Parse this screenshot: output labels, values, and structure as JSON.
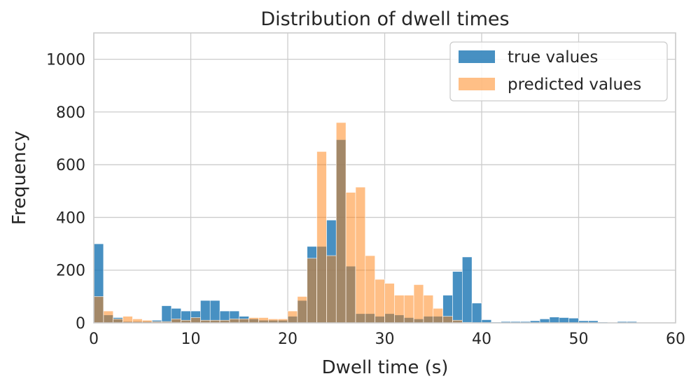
{
  "chart_data": {
    "type": "histogram",
    "title": "Distribution of dwell times",
    "xlabel": "Dwell time (s)",
    "ylabel": "Frequency",
    "xlim": [
      0,
      60
    ],
    "ylim": [
      0,
      1100
    ],
    "xticks": [
      0,
      10,
      20,
      30,
      40,
      50,
      60
    ],
    "yticks": [
      0,
      200,
      400,
      600,
      800,
      1000
    ],
    "grid": true,
    "legend_position": "top-right",
    "bin_width": 1,
    "bin_starts": [
      0,
      1,
      2,
      3,
      4,
      5,
      6,
      7,
      8,
      9,
      10,
      11,
      12,
      13,
      14,
      15,
      16,
      17,
      18,
      19,
      20,
      21,
      22,
      23,
      24,
      25,
      26,
      27,
      28,
      29,
      30,
      31,
      32,
      33,
      34,
      35,
      36,
      37,
      38,
      39,
      40,
      41,
      42,
      43,
      44,
      45,
      46,
      47,
      48,
      49,
      50,
      51,
      52,
      53,
      54,
      55,
      56,
      57,
      58,
      59
    ],
    "series": [
      {
        "name": "true values",
        "color": "#1f77b4",
        "values": [
          300,
          30,
          20,
          5,
          5,
          5,
          10,
          65,
          55,
          45,
          45,
          85,
          85,
          45,
          45,
          25,
          15,
          10,
          10,
          10,
          25,
          85,
          290,
          290,
          390,
          695,
          215,
          35,
          35,
          25,
          35,
          30,
          20,
          15,
          25,
          25,
          105,
          195,
          250,
          75,
          12,
          3,
          5,
          5,
          5,
          8,
          15,
          22,
          20,
          18,
          8,
          8,
          3,
          2,
          5,
          5,
          2,
          2,
          2,
          2
        ]
      },
      {
        "name": "predicted values",
        "color": "#ff7f0e",
        "values": [
          100,
          45,
          15,
          25,
          15,
          10,
          5,
          5,
          15,
          10,
          20,
          10,
          10,
          10,
          15,
          15,
          20,
          20,
          15,
          15,
          45,
          100,
          245,
          650,
          255,
          760,
          495,
          515,
          255,
          165,
          150,
          105,
          105,
          145,
          105,
          55,
          25,
          10,
          2,
          1,
          1,
          0,
          0,
          0,
          0,
          0,
          0,
          0,
          0,
          0,
          0,
          0,
          0,
          0,
          0,
          0,
          0,
          0,
          0,
          0
        ]
      }
    ]
  }
}
